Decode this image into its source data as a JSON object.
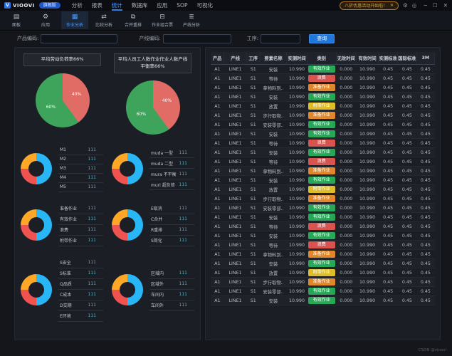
{
  "titlebar": {
    "logo_mark": "V",
    "logo": "VIOOVI",
    "version_badge": "旗舰版",
    "menu": [
      "分析",
      "报表",
      "统计",
      "数据库",
      "应用",
      "SOP",
      "可视化"
    ],
    "active_menu": "统计",
    "promo": "八折优惠活动开始啦！",
    "promo_close": "✕",
    "icon_buttons": [
      {
        "name": "settings-icon",
        "glyph": "⚙"
      },
      {
        "name": "about-icon",
        "glyph": "◎"
      }
    ],
    "window_buttons": [
      {
        "name": "minimize-button",
        "glyph": "─"
      },
      {
        "name": "maximize-button",
        "glyph": "☐"
      },
      {
        "name": "close-button",
        "glyph": "✕"
      }
    ]
  },
  "toolbar": {
    "items": [
      {
        "label": "面板",
        "icon": "▤",
        "active": false
      },
      {
        "label": "应用",
        "icon": "⚙",
        "active": false
      },
      {
        "label": "作业分析",
        "icon": "▦",
        "active": true
      },
      {
        "label": "比较分析",
        "icon": "⇄",
        "active": false
      },
      {
        "label": "合并重排",
        "icon": "⧉",
        "active": false
      },
      {
        "label": "作业组合票",
        "icon": "⊟",
        "active": false
      },
      {
        "label": "产线分析",
        "icon": "≣",
        "active": false
      }
    ]
  },
  "filters": {
    "fields": [
      {
        "label": "产品编码:",
        "value": ""
      },
      {
        "label": "产线编码:",
        "value": ""
      },
      {
        "label": "工序:",
        "value": ""
      }
    ],
    "search_button": "查询"
  },
  "left_panel": {
    "pies": [
      {
        "title": "平均劳动负荷率66%",
        "slices": [
          {
            "label": "40%",
            "value": 40,
            "color": "#e06c65"
          },
          {
            "label": "60%",
            "value": 60,
            "color": "#3fa45b"
          }
        ]
      },
      {
        "title": "平均人员工人数作业作业人数产线平衡率66%",
        "slices": [
          {
            "label": "40%",
            "value": 40,
            "color": "#e06c65"
          },
          {
            "label": "60%",
            "value": 60,
            "color": "#3fa45b"
          }
        ]
      }
    ],
    "donut_segments": [
      {
        "color": "#29b6f6",
        "pct": 50
      },
      {
        "color": "#ef5350",
        "pct": 25
      },
      {
        "color": "#ffa726",
        "pct": 25
      }
    ],
    "donuts": [
      {
        "items": [
          {
            "label": "M1",
            "value": "111"
          },
          {
            "label": "M2",
            "value": "111"
          },
          {
            "label": "M3",
            "value": "111"
          },
          {
            "label": "M4",
            "value": "111"
          },
          {
            "label": "M5",
            "value": "111"
          }
        ]
      },
      {
        "items": [
          {
            "label": "muda 一型",
            "value": "111"
          },
          {
            "label": "muda 二型",
            "value": "111"
          },
          {
            "label": "mura 不平衡",
            "value": "111"
          },
          {
            "label": "muri 超负荷",
            "value": "111"
          }
        ]
      },
      {
        "items": [
          {
            "label": "准备作业",
            "value": "111"
          },
          {
            "label": "有效作业",
            "value": "111"
          },
          {
            "label": "浪费",
            "value": "111"
          },
          {
            "label": "附带作业",
            "value": "111"
          }
        ]
      },
      {
        "items": [
          {
            "label": "E取消",
            "value": "111"
          },
          {
            "label": "C合并",
            "value": "111"
          },
          {
            "label": "R重排",
            "value": "111"
          },
          {
            "label": "S简化",
            "value": "111"
          }
        ]
      },
      {
        "items": [
          {
            "label": "S安全",
            "value": "111"
          },
          {
            "label": "S标准",
            "value": "111"
          },
          {
            "label": "Q品质",
            "value": "111"
          },
          {
            "label": "C成本",
            "value": "111"
          },
          {
            "label": "D交期",
            "value": "111"
          },
          {
            "label": "E环境",
            "value": "111"
          }
        ]
      },
      {
        "items": [
          {
            "label": "区域内",
            "value": "111"
          },
          {
            "label": "区域外",
            "value": "111"
          },
          {
            "label": "车间内",
            "value": "111"
          },
          {
            "label": "车间外",
            "value": "111"
          }
        ]
      }
    ]
  },
  "table": {
    "columns": [
      "产品",
      "产线",
      "工序",
      "要素名称",
      "实测时间",
      "类别",
      "无效时间",
      "有效时间",
      "实测标准",
      "国际标准",
      "3M"
    ],
    "row_defaults": {
      "product": "A1",
      "line": "LINE1",
      "process": "S1",
      "measured": "10.990",
      "invalid": "0.000",
      "valid": "10.990",
      "measured_std": "0.45",
      "intl_std": "0.45",
      "m3": "0.45"
    },
    "category_colors": {
      "有效作业": "#27a757",
      "浪费": "#d9534f",
      "准备作业": "#e0872c",
      "附带作业": "#dfbd28"
    },
    "rows": [
      {
        "name": "安装",
        "category": "有效作业"
      },
      {
        "name": "等待",
        "category": "浪费"
      },
      {
        "name": "拿物料到..",
        "category": "准备作业"
      },
      {
        "name": "安装",
        "category": "有效作业"
      },
      {
        "name": "放置",
        "category": "附带作业"
      },
      {
        "name": "步行取物..",
        "category": "准备作业"
      },
      {
        "name": "安装零部..",
        "category": "有效作业"
      },
      {
        "name": "安装",
        "category": "有效作业"
      },
      {
        "name": "等待",
        "category": "浪费"
      },
      {
        "name": "安装",
        "category": "有效作业"
      },
      {
        "name": "等待",
        "category": "浪费"
      },
      {
        "name": "拿物料到..",
        "category": "准备作业"
      },
      {
        "name": "安装",
        "category": "有效作业"
      },
      {
        "name": "放置",
        "category": "附带作业"
      },
      {
        "name": "步行取物..",
        "category": "准备作业"
      },
      {
        "name": "安装零部..",
        "category": "有效作业"
      },
      {
        "name": "安装",
        "category": "有效作业"
      },
      {
        "name": "等待",
        "category": "浪费"
      },
      {
        "name": "安装",
        "category": "有效作业"
      },
      {
        "name": "等待",
        "category": "浪费"
      },
      {
        "name": "拿物料到..",
        "category": "准备作业"
      },
      {
        "name": "安装",
        "category": "有效作业"
      },
      {
        "name": "放置",
        "category": "附带作业"
      },
      {
        "name": "步行取物..",
        "category": "准备作业"
      },
      {
        "name": "安装零部..",
        "category": "有效作业"
      },
      {
        "name": "安装",
        "category": "有效作业"
      }
    ]
  },
  "watermark": "CSDN @vioovi"
}
